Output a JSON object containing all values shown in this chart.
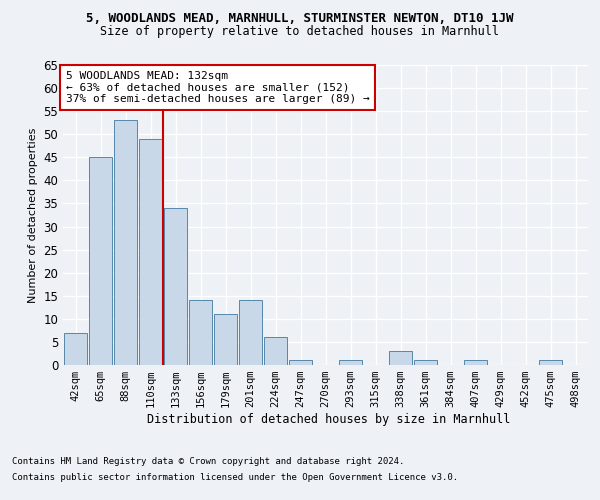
{
  "title": "5, WOODLANDS MEAD, MARNHULL, STURMINSTER NEWTON, DT10 1JW",
  "subtitle": "Size of property relative to detached houses in Marnhull",
  "xlabel": "Distribution of detached houses by size in Marnhull",
  "ylabel": "Number of detached properties",
  "footer_line1": "Contains HM Land Registry data © Crown copyright and database right 2024.",
  "footer_line2": "Contains public sector information licensed under the Open Government Licence v3.0.",
  "bar_color": "#c8d8e8",
  "bar_edge_color": "#5588aa",
  "categories": [
    "42sqm",
    "65sqm",
    "88sqm",
    "110sqm",
    "133sqm",
    "156sqm",
    "179sqm",
    "201sqm",
    "224sqm",
    "247sqm",
    "270sqm",
    "293sqm",
    "315sqm",
    "338sqm",
    "361sqm",
    "384sqm",
    "407sqm",
    "429sqm",
    "452sqm",
    "475sqm",
    "498sqm"
  ],
  "values": [
    7,
    45,
    53,
    49,
    34,
    14,
    11,
    14,
    6,
    1,
    0,
    1,
    0,
    3,
    1,
    0,
    1,
    0,
    0,
    1,
    0
  ],
  "ylim": [
    0,
    65
  ],
  "yticks": [
    0,
    5,
    10,
    15,
    20,
    25,
    30,
    35,
    40,
    45,
    50,
    55,
    60,
    65
  ],
  "annotation_line1": "5 WOODLANDS MEAD: 132sqm",
  "annotation_line2": "← 63% of detached houses are smaller (152)",
  "annotation_line3": "37% of semi-detached houses are larger (89) →",
  "vline_position": 4,
  "background_color": "#eef2f6",
  "grid_color": "#ffffff",
  "annotation_box_color": "#ffffff",
  "annotation_box_edge": "#cc0000",
  "vline_color": "#cc0000"
}
